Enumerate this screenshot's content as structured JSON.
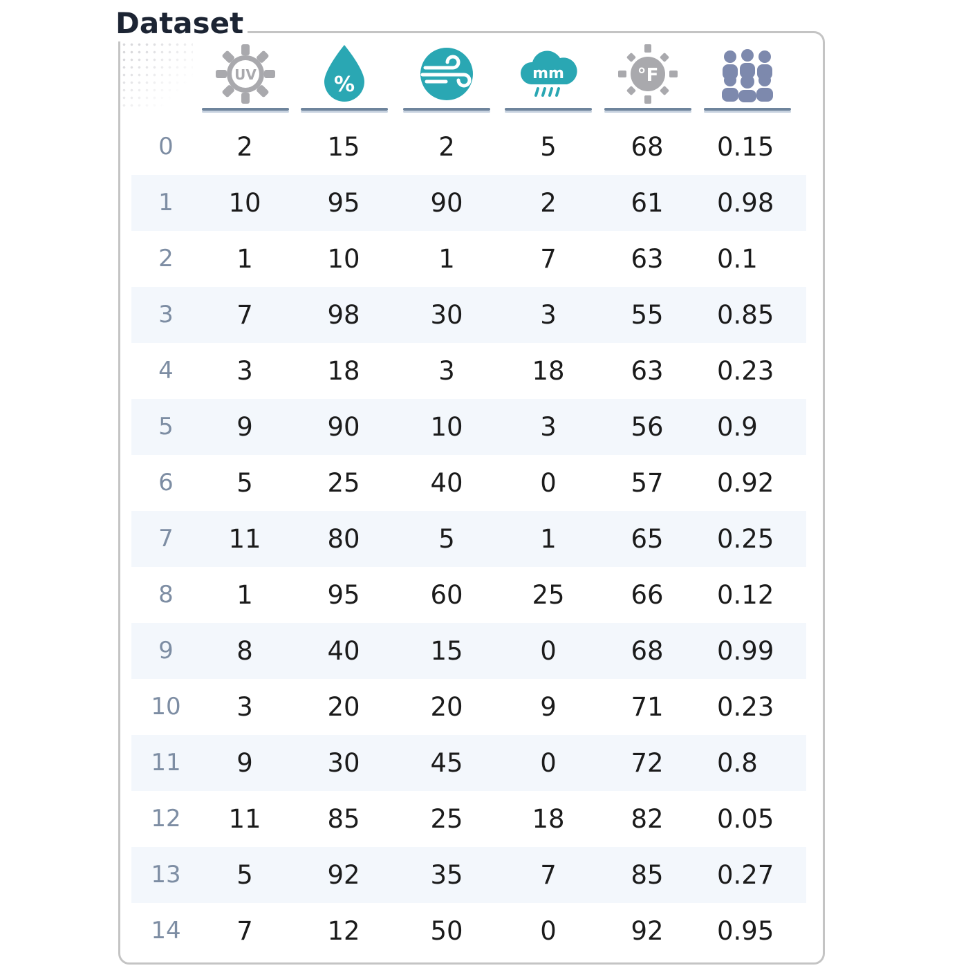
{
  "title": "Dataset",
  "columns": [
    {
      "icon": "uv-index-icon",
      "label": "UV"
    },
    {
      "icon": "humidity-drop-icon",
      "label": "%"
    },
    {
      "icon": "wind-icon",
      "label": ""
    },
    {
      "icon": "rainfall-mm-icon",
      "label": "mm"
    },
    {
      "icon": "temperature-fahrenheit-icon",
      "label": "°F"
    },
    {
      "icon": "crowd-people-icon",
      "label": ""
    }
  ],
  "colors": {
    "accent_teal": "#2aa7b3",
    "icon_grey": "#a9a9ad",
    "people_blue": "#7d89ad",
    "index_text": "#7d8da3",
    "stripe": "#f3f7fc"
  },
  "rows": [
    {
      "index": "0",
      "uv": "2",
      "humidity": "15",
      "wind": "2",
      "rain": "5",
      "temp": "68",
      "crowd": "0.15"
    },
    {
      "index": "1",
      "uv": "10",
      "humidity": "95",
      "wind": "90",
      "rain": "2",
      "temp": "61",
      "crowd": "0.98"
    },
    {
      "index": "2",
      "uv": "1",
      "humidity": "10",
      "wind": "1",
      "rain": "7",
      "temp": "63",
      "crowd": "0.1"
    },
    {
      "index": "3",
      "uv": "7",
      "humidity": "98",
      "wind": "30",
      "rain": "3",
      "temp": "55",
      "crowd": "0.85"
    },
    {
      "index": "4",
      "uv": "3",
      "humidity": "18",
      "wind": "3",
      "rain": "18",
      "temp": "63",
      "crowd": "0.23"
    },
    {
      "index": "5",
      "uv": "9",
      "humidity": "90",
      "wind": "10",
      "rain": "3",
      "temp": "56",
      "crowd": "0.9"
    },
    {
      "index": "6",
      "uv": "5",
      "humidity": "25",
      "wind": "40",
      "rain": "0",
      "temp": "57",
      "crowd": "0.92"
    },
    {
      "index": "7",
      "uv": "11",
      "humidity": "80",
      "wind": "5",
      "rain": "1",
      "temp": "65",
      "crowd": "0.25"
    },
    {
      "index": "8",
      "uv": "1",
      "humidity": "95",
      "wind": "60",
      "rain": "25",
      "temp": "66",
      "crowd": "0.12"
    },
    {
      "index": "9",
      "uv": "8",
      "humidity": "40",
      "wind": "15",
      "rain": "0",
      "temp": "68",
      "crowd": "0.99"
    },
    {
      "index": "10",
      "uv": "3",
      "humidity": "20",
      "wind": "20",
      "rain": "9",
      "temp": "71",
      "crowd": "0.23"
    },
    {
      "index": "11",
      "uv": "9",
      "humidity": "30",
      "wind": "45",
      "rain": "0",
      "temp": "72",
      "crowd": "0.8"
    },
    {
      "index": "12",
      "uv": "11",
      "humidity": "85",
      "wind": "25",
      "rain": "18",
      "temp": "82",
      "crowd": "0.05"
    },
    {
      "index": "13",
      "uv": "5",
      "humidity": "92",
      "wind": "35",
      "rain": "7",
      "temp": "85",
      "crowd": "0.27"
    },
    {
      "index": "14",
      "uv": "7",
      "humidity": "12",
      "wind": "50",
      "rain": "0",
      "temp": "92",
      "crowd": "0.95"
    }
  ]
}
